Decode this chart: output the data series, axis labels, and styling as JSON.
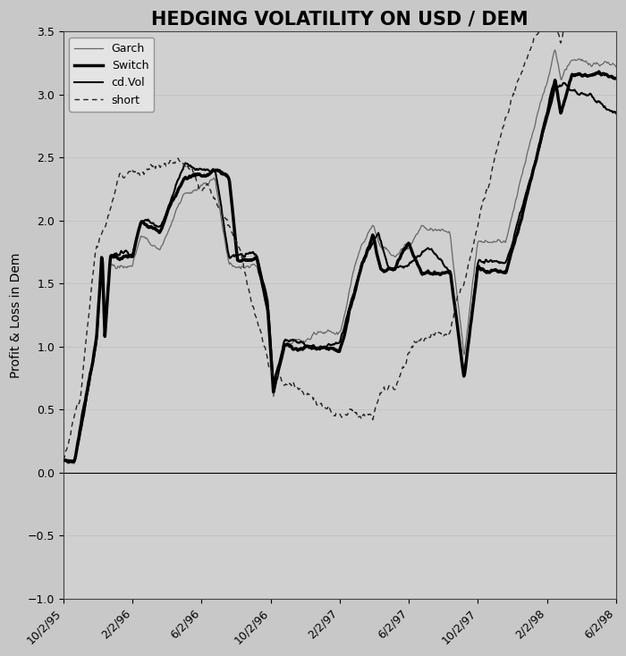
{
  "title": "HEDGING VOLATILITY ON USD / DEM",
  "ylabel": "Profit & Loss in Dem",
  "xlabel": "",
  "ylim": [
    -1.0,
    3.5
  ],
  "yticks": [
    -1.0,
    -0.5,
    0.0,
    0.5,
    1.0,
    1.5,
    2.0,
    2.5,
    3.0,
    3.5
  ],
  "xtick_labels": [
    "10/2/95",
    "2/2/96",
    "6/2/96",
    "10/2/96",
    "2/2/97",
    "6/2/97",
    "10/2/97",
    "2/2/98",
    "6/2/98"
  ],
  "bg_color": "#c8c8c8",
  "plot_bg_color": "#d0d0d0",
  "title_fontsize": 15,
  "axis_label_fontsize": 10,
  "tick_fontsize": 9,
  "legend_fontsize": 9,
  "garch_color": "#666666",
  "garch_lw": 0.9,
  "switch_color": "#000000",
  "switch_lw": 2.5,
  "cdvol_color": "#000000",
  "cdvol_lw": 1.5,
  "short_color": "#222222",
  "short_lw": 1.0
}
